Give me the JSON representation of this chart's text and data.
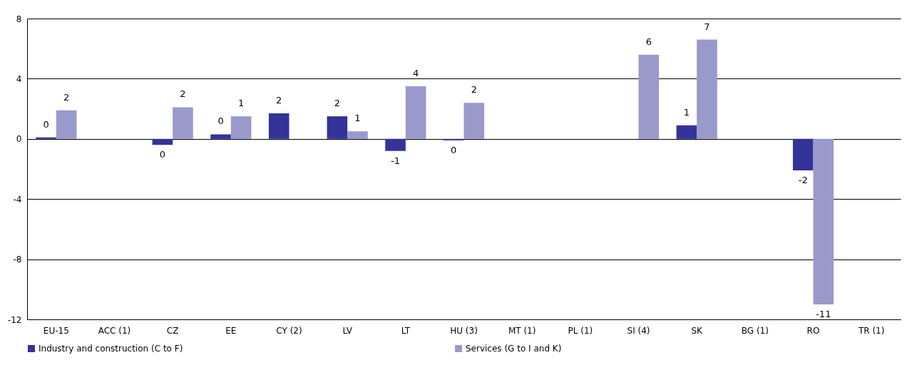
{
  "chart_data": {
    "type": "bar",
    "categories": [
      "EU-15",
      "ACC (1)",
      "CZ",
      "EE",
      "CY (2)",
      "LV",
      "LT",
      "HU (3)",
      "MT (1)",
      "PL (1)",
      "SI (4)",
      "SK",
      "BG (1)",
      "RO",
      "TR (1)"
    ],
    "series": [
      {
        "name": "Industry and construction (C to F)",
        "color": "#333399",
        "values": [
          0.1,
          null,
          -0.4,
          0.3,
          1.7,
          1.5,
          -0.8,
          -0.1,
          null,
          null,
          null,
          0.9,
          null,
          -2.1,
          null
        ],
        "value_labels": [
          "0",
          null,
          "0",
          "0",
          "2",
          "2",
          "-1",
          "0",
          null,
          null,
          null,
          "1",
          null,
          "-2",
          null
        ]
      },
      {
        "name": "Services (G to I and K)",
        "color": "#9999cc",
        "values": [
          1.9,
          null,
          2.1,
          1.5,
          null,
          0.5,
          3.5,
          2.4,
          null,
          null,
          5.6,
          6.6,
          null,
          -11.0,
          null
        ],
        "value_labels": [
          "2",
          null,
          "2",
          "1",
          null,
          "1",
          "4",
          "2",
          null,
          null,
          "6",
          "7",
          null,
          "-11",
          null
        ]
      }
    ],
    "ylim": [
      -12,
      8
    ],
    "yticks": [
      -12,
      -8,
      -4,
      0,
      4,
      8
    ],
    "grid": "y",
    "legend": "bottom"
  }
}
